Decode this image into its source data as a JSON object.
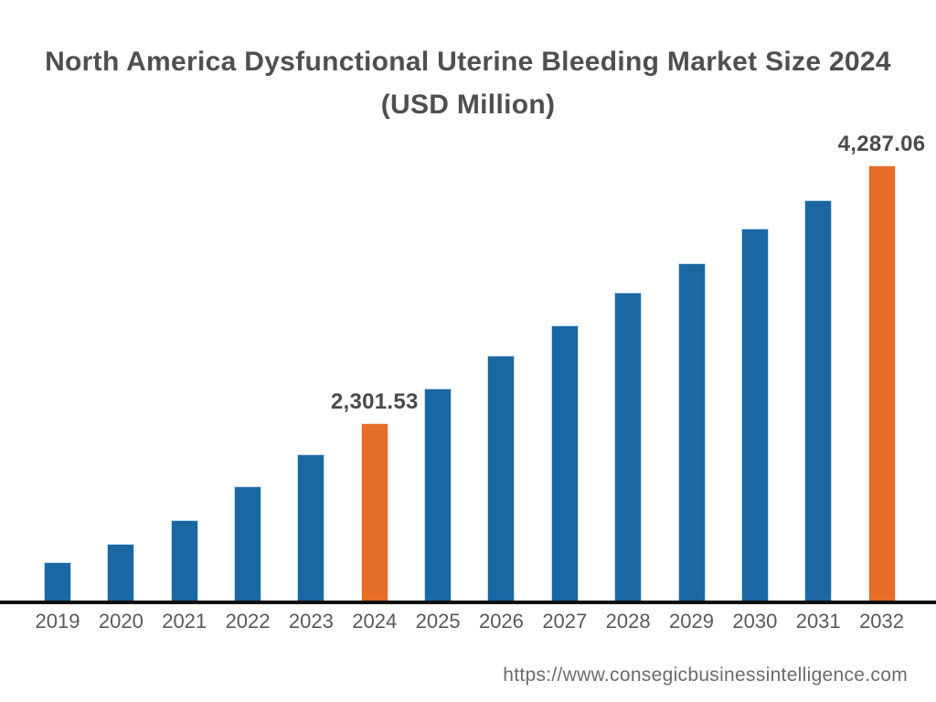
{
  "page": {
    "background": "#ffffff",
    "footer_url": "https://www.consegicbusinessintelligence.com"
  },
  "chart_data": {
    "type": "bar",
    "title_line1": "North America Dysfunctional Uterine Bleeding Market Size 2024",
    "title_line2": "(USD Million)",
    "unit": "USD Million",
    "xlabel": "",
    "ylabel": "",
    "grid": false,
    "legend": false,
    "categories": [
      "2019",
      "2020",
      "2021",
      "2022",
      "2023",
      "2024",
      "2025",
      "2026",
      "2027",
      "2028",
      "2029",
      "2030",
      "2031",
      "2032"
    ],
    "values": [
      1231,
      1372,
      1555,
      1816,
      2062,
      2301.53,
      2569,
      2823,
      3055,
      3308,
      3534,
      3801,
      4020,
      4287.06
    ],
    "highlight_categories": [
      "2024",
      "2032"
    ],
    "labeled_points": [
      {
        "category": "2024",
        "label": "2,301.53"
      },
      {
        "category": "2032",
        "label": "4,287.06"
      }
    ],
    "ylim": [
      936,
      4505
    ],
    "colors": {
      "bar_default": "#1b67a1",
      "bar_default_edge": "#c2dcf0",
      "bar_highlight": "#e66d28",
      "bar_highlight_edge": "#f7ddcb",
      "axis_line": "#111111",
      "title_text": "#4f4f4f",
      "tick_text": "#58595b",
      "data_label_text": "#4a4a4a",
      "footer_text": "#6b6b6b"
    }
  }
}
